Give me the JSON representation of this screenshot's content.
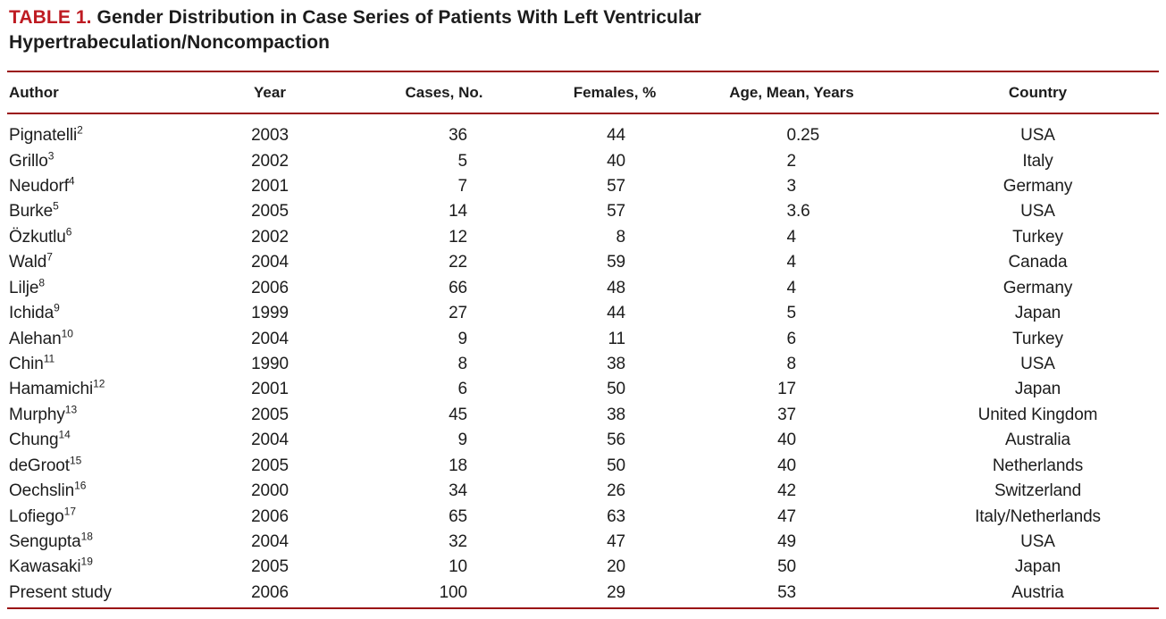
{
  "title": {
    "label": "TABLE 1.",
    "text": "Gender Distribution in Case Series of Patients With Left Ventricular Hypertrabeculation/Noncompaction"
  },
  "columns": [
    "Author",
    "Year",
    "Cases, No.",
    "Females, %",
    "Age, Mean, Years",
    "Country"
  ],
  "rows": [
    {
      "author": "Pignatelli",
      "ref": "2",
      "year": "2003",
      "cases": "36",
      "females": "44",
      "age": "0.25",
      "country": "USA"
    },
    {
      "author": "Grillo",
      "ref": "3",
      "year": "2002",
      "cases": "5",
      "females": "40",
      "age": "2",
      "country": "Italy"
    },
    {
      "author": "Neudorf",
      "ref": "4",
      "year": "2001",
      "cases": "7",
      "females": "57",
      "age": "3",
      "country": "Germany"
    },
    {
      "author": "Burke",
      "ref": "5",
      "year": "2005",
      "cases": "14",
      "females": "57",
      "age": "3.6",
      "country": "USA"
    },
    {
      "author": "Özkutlu",
      "ref": "6",
      "year": "2002",
      "cases": "12",
      "females": "8",
      "age": "4",
      "country": "Turkey"
    },
    {
      "author": "Wald",
      "ref": "7",
      "year": "2004",
      "cases": "22",
      "females": "59",
      "age": "4",
      "country": "Canada"
    },
    {
      "author": "Lilje",
      "ref": "8",
      "year": "2006",
      "cases": "66",
      "females": "48",
      "age": "4",
      "country": "Germany"
    },
    {
      "author": "Ichida",
      "ref": "9",
      "year": "1999",
      "cases": "27",
      "females": "44",
      "age": "5",
      "country": "Japan"
    },
    {
      "author": "Alehan",
      "ref": "10",
      "year": "2004",
      "cases": "9",
      "females": "11",
      "age": "6",
      "country": "Turkey"
    },
    {
      "author": "Chin",
      "ref": "11",
      "year": "1990",
      "cases": "8",
      "females": "38",
      "age": "8",
      "country": "USA"
    },
    {
      "author": "Hamamichi",
      "ref": "12",
      "year": "2001",
      "cases": "6",
      "females": "50",
      "age": "17",
      "country": "Japan"
    },
    {
      "author": "Murphy",
      "ref": "13",
      "year": "2005",
      "cases": "45",
      "females": "38",
      "age": "37",
      "country": "United Kingdom"
    },
    {
      "author": "Chung",
      "ref": "14",
      "year": "2004",
      "cases": "9",
      "females": "56",
      "age": "40",
      "country": "Australia"
    },
    {
      "author": "deGroot",
      "ref": "15",
      "year": "2005",
      "cases": "18",
      "females": "50",
      "age": "40",
      "country": "Netherlands"
    },
    {
      "author": "Oechslin",
      "ref": "16",
      "year": "2000",
      "cases": "34",
      "females": "26",
      "age": "42",
      "country": "Switzerland"
    },
    {
      "author": "Lofiego",
      "ref": "17",
      "year": "2006",
      "cases": "65",
      "females": "63",
      "age": "47",
      "country": "Italy/Netherlands"
    },
    {
      "author": "Sengupta",
      "ref": "18",
      "year": "2004",
      "cases": "32",
      "females": "47",
      "age": "49",
      "country": "USA"
    },
    {
      "author": "Kawasaki",
      "ref": "19",
      "year": "2005",
      "cases": "10",
      "females": "20",
      "age": "50",
      "country": "Japan"
    },
    {
      "author": "Present study",
      "ref": "",
      "year": "2006",
      "cases": "100",
      "females": "29",
      "age": "53",
      "country": "Austria"
    }
  ],
  "colors": {
    "accent_red": "#be1b22",
    "rule_red": "#9a1013",
    "text": "#1c1c1c",
    "background": "#ffffff"
  }
}
